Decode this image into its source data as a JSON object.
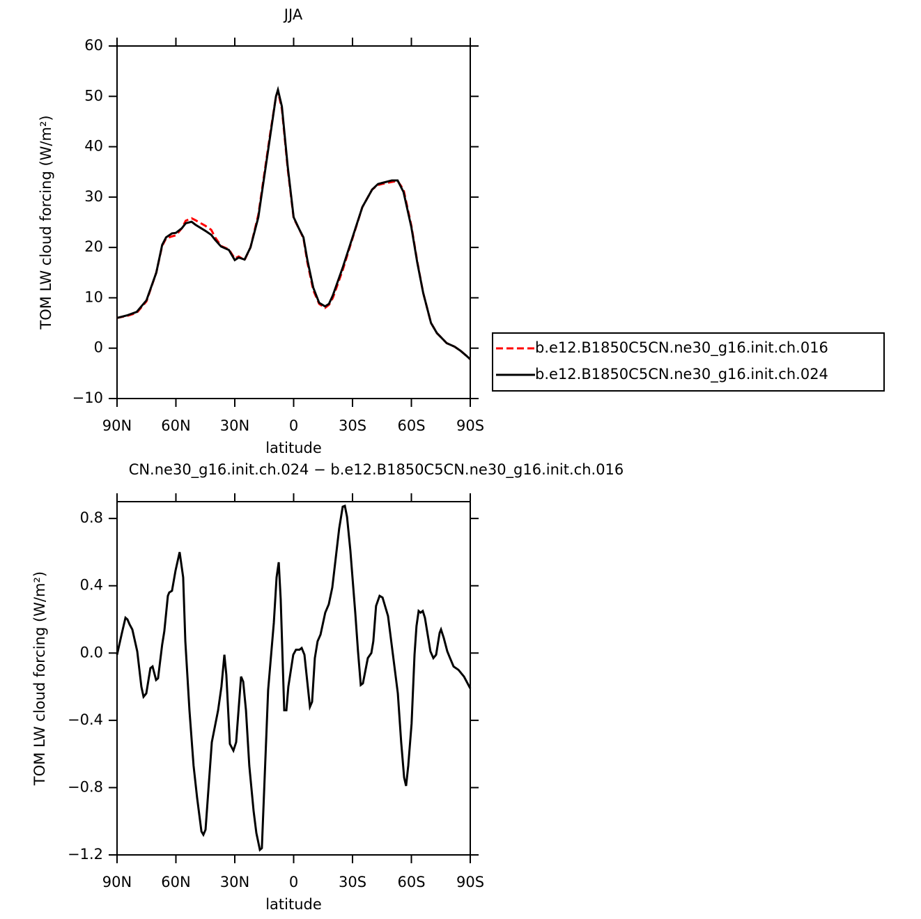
{
  "chart_data": [
    {
      "type": "line",
      "title": "JJA",
      "xlabel": "latitude",
      "ylabel": "TOM LW cloud forcing (W/m²)",
      "xlim": [
        90,
        -90
      ],
      "ylim": [
        -10,
        60
      ],
      "xticks": [
        {
          "value": 90,
          "label": "90N"
        },
        {
          "value": 60,
          "label": "60N"
        },
        {
          "value": 30,
          "label": "30N"
        },
        0,
        {
          "value": -30,
          "label": "30S"
        },
        {
          "value": -60,
          "label": "60S"
        },
        {
          "value": -90,
          "label": "90S"
        }
      ],
      "yticks": [
        {
          "value": -10,
          "label": "−10"
        },
        0,
        10,
        20,
        30,
        40,
        50,
        60
      ],
      "legend": "outside-right",
      "x": [
        90,
        85,
        80,
        75,
        70,
        67,
        65,
        62,
        60,
        57,
        55,
        52,
        50,
        45,
        42,
        40,
        37,
        33,
        30,
        28,
        25,
        22,
        18,
        15,
        12,
        9,
        8,
        6,
        3,
        0,
        -3,
        -5,
        -7,
        -10,
        -13,
        -16,
        -18,
        -20,
        -25,
        -30,
        -35,
        -40,
        -43,
        -45,
        -50,
        -53,
        -56,
        -60,
        -63,
        -66,
        -70,
        -73,
        -78,
        -82,
        -85,
        -88,
        -90
      ],
      "series": [
        {
          "name": "b.e12.B1850C5CN.ne30_g16.init.ch.016",
          "color": "#ff0000",
          "dash": "dashed",
          "values": [
            6,
            6.4,
            7,
            9.3,
            15,
            20.3,
            21.8,
            22.2,
            22.4,
            23.8,
            25.3,
            25.8,
            25.4,
            24.3,
            23.5,
            22,
            20.3,
            19.6,
            17.8,
            18.2,
            17.5,
            20,
            26.5,
            34.5,
            42.5,
            50,
            51,
            47.5,
            35.5,
            25.8,
            23.5,
            21.8,
            17,
            11.5,
            8.8,
            8,
            8.6,
            10,
            15.5,
            21.8,
            28,
            31.5,
            32.4,
            32.6,
            33,
            33.2,
            31.5,
            24.3,
            17.2,
            11,
            5,
            3,
            1,
            0.3,
            -0.5,
            -1.5,
            -2.2
          ]
        },
        {
          "name": "b.e12.B1850C5CN.ne30_g16.init.ch.024",
          "color": "#000000",
          "dash": "solid",
          "values": [
            6,
            6.5,
            7.2,
            9.5,
            15,
            20.5,
            22,
            22.8,
            22.9,
            23.8,
            24.8,
            25.1,
            24.5,
            23.3,
            22.5,
            21.5,
            20.2,
            19.5,
            17.5,
            18,
            17.6,
            20,
            26,
            34,
            42,
            50,
            51.3,
            48,
            36,
            26,
            23.5,
            22,
            17.5,
            12,
            9,
            8.3,
            8.8,
            10.5,
            16,
            22,
            28,
            31.5,
            32.6,
            32.8,
            33.3,
            33.3,
            31,
            24,
            17,
            11,
            5,
            3,
            1,
            0.3,
            -0.5,
            -1.5,
            -2.2
          ]
        }
      ]
    },
    {
      "type": "line",
      "title": "CN.ne30_g16.init.ch.024 − b.e12.B1850C5CN.ne30_g16.init.ch.016",
      "xlabel": "latitude",
      "ylabel": "TOM LW cloud forcing (W/m²)",
      "xlim": [
        90,
        -90
      ],
      "ylim": [
        -1.2,
        0.9
      ],
      "xticks": [
        {
          "value": 90,
          "label": "90N"
        },
        {
          "value": 60,
          "label": "60N"
        },
        {
          "value": 30,
          "label": "30N"
        },
        0,
        {
          "value": -30,
          "label": "30S"
        },
        {
          "value": -60,
          "label": "60S"
        },
        {
          "value": -90,
          "label": "90S"
        }
      ],
      "yticks": [
        {
          "value": -1.2,
          "label": "−1.2"
        },
        {
          "value": -0.8,
          "label": "−0.8"
        },
        {
          "value": -0.4,
          "label": "−0.4"
        },
        {
          "value": 0,
          "label": "0.0"
        },
        0.4,
        0.8
      ],
      "x": [
        90,
        87.5,
        85.7,
        84.7,
        83.6,
        82.2,
        79.7,
        77.6,
        76.5,
        75.1,
        73,
        71.9,
        70.1,
        69.1,
        67,
        65.9,
        64.1,
        63.4,
        62,
        60.2,
        58.1,
        56.3,
        55.2,
        53.1,
        51,
        49.2,
        47,
        46,
        44.9,
        41.7,
        38.5,
        36.8,
        35.3,
        34.3,
        32.5,
        30.7,
        29.3,
        26.8,
        25.7,
        24.3,
        22.6,
        20.4,
        19,
        17.2,
        16.2,
        13,
        10.1,
        8.7,
        7.6,
        6.6,
        4.8,
        3.7,
        2.7,
        0.2,
        -1.2,
        -3,
        -4.1,
        -5.5,
        -8.3,
        -9.4,
        -10.8,
        -12.2,
        -13.7,
        -16.1,
        -17.9,
        -19.7,
        -21.5,
        -23.2,
        -25,
        -26.1,
        -27.2,
        -28.9,
        -31.4,
        -32.8,
        -34.2,
        -35.3,
        -37.8,
        -39.6,
        -40.6,
        -42,
        -43.8,
        -45.3,
        -48.1,
        -50.6,
        -53.1,
        -54.8,
        -56.3,
        -57.3,
        -58.4,
        -60.1,
        -61.6,
        -62.6,
        -63.7,
        -64.7,
        -65.8,
        -66.9,
        -69.7,
        -71.2,
        -72.6,
        -74.4,
        -75.1,
        -76.5,
        -78.3,
        -79.7,
        -81.5,
        -84,
        -86.8,
        -90
      ],
      "series": [
        {
          "color": "#000000",
          "values": [
            -0.01,
            0.12,
            0.21,
            0.2,
            0.17,
            0.14,
            0.01,
            -0.2,
            -0.26,
            -0.24,
            -0.09,
            -0.08,
            -0.16,
            -0.15,
            0.05,
            0.13,
            0.34,
            0.36,
            0.37,
            0.49,
            0.6,
            0.45,
            0.07,
            -0.34,
            -0.67,
            -0.86,
            -1.06,
            -1.08,
            -1.05,
            -0.53,
            -0.34,
            -0.2,
            -0.01,
            -0.13,
            -0.54,
            -0.58,
            -0.53,
            -0.14,
            -0.17,
            -0.34,
            -0.67,
            -0.94,
            -1.07,
            -1.17,
            -1.16,
            -0.22,
            0.18,
            0.45,
            0.54,
            0.32,
            -0.34,
            -0.34,
            -0.2,
            -0.01,
            0.02,
            0.02,
            0.03,
            -0.01,
            -0.32,
            -0.29,
            -0.03,
            0.07,
            0.11,
            0.24,
            0.29,
            0.39,
            0.57,
            0.74,
            0.87,
            0.875,
            0.81,
            0.61,
            0.24,
            0.01,
            -0.19,
            -0.18,
            -0.03,
            0,
            0.07,
            0.28,
            0.34,
            0.33,
            0.22,
            -0.01,
            -0.24,
            -0.53,
            -0.74,
            -0.79,
            -0.67,
            -0.42,
            -0.01,
            0.16,
            0.25,
            0.24,
            0.25,
            0.21,
            0.01,
            -0.03,
            -0.01,
            0.12,
            0.14,
            0.09,
            0.01,
            -0.03,
            -0.08,
            -0.1,
            -0.14,
            -0.21
          ]
        }
      ]
    }
  ]
}
